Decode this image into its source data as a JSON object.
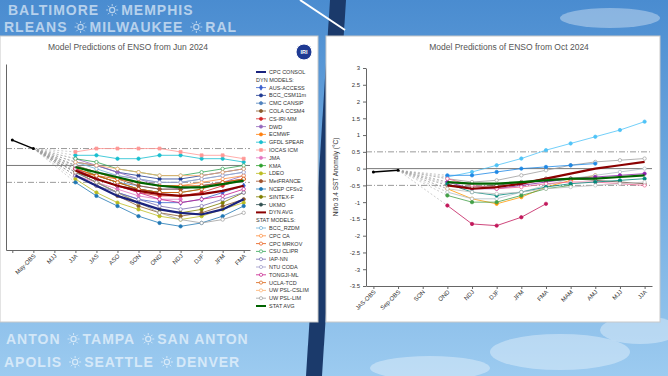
{
  "background_text": [
    [
      "BALTIMORE",
      "MEMPHIS"
    ],
    [
      "RLEANS",
      "MILWAUKEE",
      "RAL"
    ],
    [
      "ANTON",
      "TAMPA",
      "SAN ANTON"
    ],
    [
      "APOLIS",
      "SEATTLE",
      "DENVER"
    ]
  ],
  "chart_data": [
    {
      "type": "line",
      "title": "Model Predictions of ENSO from Jun 2024",
      "categories": [
        null,
        "May-OBS",
        "MJJ",
        "JJA",
        "JAS",
        "ASO",
        "SON",
        "OND",
        "NDJ",
        "DJF",
        "JFM",
        "FMA"
      ],
      "observed": {
        "color": "#000000",
        "values": [
          0.75,
          0.5,
          null,
          null,
          null,
          null,
          null,
          null,
          null,
          null,
          null,
          null
        ]
      },
      "series": [
        {
          "name": "CPC CONSOL",
          "color": "#1a237e",
          "line_style": "bold",
          "marker": "none",
          "values": [
            null,
            null,
            null,
            -0.3,
            -0.6,
            -0.9,
            -1.1,
            -1.3,
            -1.4,
            -1.45,
            -1.3,
            -1.0
          ]
        },
        {
          "name": "AUS-ACCESS",
          "color": "#3a5fcd",
          "marker": "diamond",
          "values": [
            null,
            null,
            null,
            -0.2,
            -0.5,
            -0.8,
            -1.0,
            -1.1,
            -1.1,
            -1.0,
            -0.8,
            -0.6
          ]
        },
        {
          "name": "BCC_CSM11m",
          "color": "#1f3a93",
          "marker": "circle",
          "values": [
            null,
            null,
            null,
            0.1,
            0.0,
            -0.2,
            -0.3,
            -0.4,
            -0.4,
            -0.3,
            -0.2,
            -0.1
          ]
        },
        {
          "name": "CMC CANSIP",
          "color": "#4f81bd",
          "marker": "circle",
          "values": [
            null,
            null,
            null,
            -0.1,
            -0.3,
            -0.5,
            -0.6,
            -0.7,
            -0.7,
            -0.6,
            -0.5,
            -0.4
          ]
        },
        {
          "name": "COLA CCSM4",
          "color": "#8b5a2b",
          "marker": "circle",
          "values": [
            null,
            null,
            null,
            -0.3,
            -0.6,
            -0.9,
            -1.2,
            -1.4,
            -1.5,
            -1.4,
            -1.2,
            -1.0
          ]
        },
        {
          "name": "CS-IRI-MM",
          "color": "#d62728",
          "marker": "circle",
          "values": [
            null,
            null,
            null,
            -0.2,
            -0.4,
            -0.6,
            -0.8,
            -0.9,
            -0.9,
            -0.8,
            -0.6,
            -0.4
          ]
        },
        {
          "name": "DWD",
          "color": "#9467bd",
          "marker": "circle",
          "values": [
            null,
            null,
            null,
            0.2,
            0.0,
            -0.2,
            -0.4,
            -0.6,
            -0.7,
            -0.6,
            -0.5,
            -0.3
          ]
        },
        {
          "name": "ECMWF",
          "color": "#ff7f0e",
          "marker": "circle",
          "values": [
            null,
            null,
            null,
            -0.1,
            -0.3,
            -0.5,
            -0.7,
            -0.8,
            null,
            null,
            null,
            null
          ]
        },
        {
          "name": "GFDL SPEAR",
          "color": "#17becf",
          "marker": "circle",
          "values": [
            null,
            null,
            null,
            0.3,
            0.3,
            0.2,
            0.2,
            0.3,
            0.3,
            0.2,
            0.2,
            0.1
          ]
        },
        {
          "name": "IOCAS ICM",
          "color": "#ff9896",
          "marker": "square",
          "values": [
            null,
            null,
            null,
            0.4,
            0.5,
            0.5,
            0.5,
            0.5,
            0.4,
            0.3,
            0.3,
            0.2
          ]
        },
        {
          "name": "JMA",
          "color": "#e377c2",
          "marker": "circle",
          "values": [
            null,
            null,
            null,
            -0.3,
            -0.5,
            -0.7,
            -0.9,
            -1.0,
            -1.0,
            null,
            null,
            null
          ]
        },
        {
          "name": "KMA",
          "color": "#2ca02c",
          "marker": "circle",
          "values": [
            null,
            null,
            null,
            0.0,
            -0.3,
            -0.5,
            -0.7,
            -0.8,
            -0.8,
            -0.7,
            null,
            null
          ]
        },
        {
          "name": "LDEO",
          "color": "#bcbd22",
          "marker": "circle",
          "values": [
            null,
            null,
            null,
            -0.4,
            -0.8,
            -1.1,
            -1.3,
            -1.5,
            -1.6,
            -1.5,
            -1.3,
            -1.1
          ]
        },
        {
          "name": "MetFRANCE",
          "color": "#a0522d",
          "marker": "circle",
          "values": [
            null,
            null,
            null,
            0.0,
            -0.2,
            -0.4,
            -0.6,
            -0.7,
            -0.7,
            null,
            null,
            null
          ]
        },
        {
          "name": "NCEP CFSv2",
          "color": "#1f77b4",
          "marker": "circle",
          "values": [
            null,
            null,
            null,
            -0.5,
            -0.9,
            -1.2,
            -1.5,
            -1.7,
            -1.8,
            -1.7,
            -1.5,
            -1.2
          ]
        },
        {
          "name": "SINTEX-F",
          "color": "#7f7f00",
          "marker": "circle",
          "values": [
            null,
            null,
            null,
            -0.2,
            -0.5,
            -0.8,
            -1.1,
            -1.3,
            -1.4,
            -1.3,
            -1.1,
            -0.8
          ]
        },
        {
          "name": "UKMO",
          "color": "#2f4f4f",
          "marker": "circle",
          "values": [
            null,
            null,
            null,
            -0.2,
            -0.4,
            -0.6,
            -0.7,
            -0.8,
            null,
            null,
            null,
            null
          ]
        },
        {
          "name": "DYN AVG",
          "color": "#8b0000",
          "line_style": "bold",
          "marker": "none",
          "values": [
            null,
            null,
            null,
            -0.15,
            -0.4,
            -0.6,
            -0.75,
            -0.85,
            -0.9,
            -0.85,
            -0.75,
            -0.6
          ]
        },
        {
          "name": "BCC_RZDM",
          "color": "#6baed6",
          "marker": "circle-open",
          "values": [
            null,
            null,
            null,
            0.1,
            -0.1,
            -0.3,
            -0.4,
            -0.5,
            -0.5,
            -0.4,
            -0.3,
            -0.2
          ]
        },
        {
          "name": "CPC CA",
          "color": "#fd8d3c",
          "marker": "circle-open",
          "values": [
            null,
            null,
            null,
            0.0,
            -0.2,
            -0.4,
            -0.5,
            -0.6,
            -0.6,
            -0.5,
            -0.4,
            -0.3
          ]
        },
        {
          "name": "CPC MRKOV",
          "color": "#e6550d",
          "marker": "circle-open",
          "values": [
            null,
            null,
            null,
            -0.1,
            -0.3,
            -0.5,
            -0.7,
            -0.8,
            -0.8,
            -0.7,
            -0.5,
            -0.4
          ]
        },
        {
          "name": "CSU CLIPR",
          "color": "#31a354",
          "marker": "circle-open",
          "values": [
            null,
            null,
            null,
            0.2,
            0.1,
            -0.1,
            -0.2,
            -0.3,
            -0.3,
            -0.2,
            -0.1,
            0.0
          ]
        },
        {
          "name": "IAP-NN",
          "color": "#756bb1",
          "marker": "circle-open",
          "values": [
            null,
            null,
            null,
            -0.3,
            -0.6,
            -0.8,
            -1.0,
            -1.2,
            -1.3,
            -1.2,
            -1.0,
            -0.8
          ]
        },
        {
          "name": "NTU CODA",
          "color": "#9e9ac8",
          "marker": "circle-open",
          "values": [
            null,
            null,
            null,
            0.0,
            -0.2,
            -0.3,
            -0.4,
            -0.5,
            -0.5,
            -0.4,
            -0.3,
            -0.2
          ]
        },
        {
          "name": "TONGJI-ML",
          "color": "#c51b8a",
          "marker": "circle-open",
          "values": [
            null,
            null,
            null,
            -0.1,
            -0.4,
            -0.6,
            -0.8,
            -1.0,
            -1.1,
            -1.0,
            -0.9,
            -0.7
          ]
        },
        {
          "name": "UCLA-TCD",
          "color": "#d95f0e",
          "marker": "circle-open",
          "values": [
            null,
            null,
            null,
            -0.2,
            -0.3,
            -0.4,
            -0.5,
            -0.6,
            -0.6,
            -0.6,
            -0.5,
            -0.4
          ]
        },
        {
          "name": "UW PSL-CSLIM",
          "color": "#fdae6b",
          "marker": "circle-open",
          "values": [
            null,
            null,
            null,
            0.1,
            0.0,
            -0.1,
            -0.2,
            -0.3,
            -0.3,
            -0.3,
            -0.2,
            -0.1
          ]
        },
        {
          "name": "UW PSL-LIM",
          "color": "#9e9e9e",
          "marker": "circle-open",
          "values": [
            null,
            null,
            null,
            -0.2,
            -0.5,
            -0.8,
            -1.1,
            -1.4,
            -1.6,
            -1.7,
            -1.6,
            -1.4
          ]
        },
        {
          "name": "STAT AVG",
          "color": "#006400",
          "line_style": "bold",
          "marker": "none",
          "values": [
            null,
            null,
            null,
            -0.05,
            -0.2,
            -0.35,
            -0.5,
            -0.6,
            -0.65,
            -0.65,
            -0.55,
            -0.45
          ]
        }
      ],
      "ylim": [
        -2.5,
        3
      ],
      "tick_labels": "x",
      "grid": false,
      "legend": "right",
      "legend_headings": [
        {
          "label": "DYN MODELS:",
          "before": "AUS-ACCESS"
        },
        {
          "label": "STAT MODELS:",
          "before": "BCC_RZDM"
        }
      ],
      "annotations": [
        {
          "y": 0.5,
          "line_style": "dashdot"
        },
        {
          "y": 0,
          "line_style": "solid"
        },
        {
          "y": -0.5,
          "line_style": "dashdot"
        },
        {
          "text": "IRI"
        }
      ]
    },
    {
      "type": "line",
      "title": "Model Predictions of ENSO from Oct 2024",
      "y_label": "Niño 3.4 SST Anomaly (°C)",
      "categories": [
        "JAS-OBS",
        "Sep-OBS",
        "SON",
        "OND",
        "NDJ",
        "DJF",
        "JFM",
        "FMA",
        "MAM",
        "AMJ",
        "MJJ",
        "JJA"
      ],
      "observed": {
        "color": "#000000",
        "values": [
          -0.1,
          -0.05,
          null,
          null,
          null,
          null,
          null,
          null,
          null,
          null,
          null,
          null
        ]
      },
      "series": [
        {
          "color": "#4fc3f7",
          "marker": "circle",
          "values": [
            null,
            null,
            null,
            -0.25,
            -0.1,
            0.1,
            0.3,
            0.55,
            0.75,
            0.95,
            1.15,
            1.4
          ]
        },
        {
          "color": "#c2185b",
          "marker": "circle",
          "values": [
            null,
            null,
            null,
            -1.1,
            -1.65,
            -1.7,
            -1.45,
            -1.05,
            null,
            null,
            null,
            null
          ]
        },
        {
          "color": "#ff9800",
          "marker": "circle",
          "values": [
            null,
            null,
            null,
            -0.6,
            -0.9,
            -1.05,
            -0.85,
            -0.55,
            -0.35,
            -0.2,
            null,
            null
          ]
        },
        {
          "color": "#9e9e9e",
          "marker": "circle-open",
          "values": [
            null,
            null,
            null,
            -0.3,
            -0.4,
            -0.35,
            -0.2,
            -0.05,
            0.1,
            0.2,
            0.25,
            0.3
          ]
        },
        {
          "color": "#b0bec5",
          "marker": "circle-open",
          "values": [
            null,
            null,
            null,
            -0.7,
            -0.9,
            -0.9,
            -0.7,
            -0.5,
            -0.3,
            -0.2,
            -0.1,
            0.0
          ]
        },
        {
          "color": "#1e88e5",
          "marker": "circle",
          "values": [
            null,
            null,
            null,
            -0.2,
            -0.2,
            -0.1,
            0.0,
            0.05,
            0.1,
            0.15,
            null,
            null
          ]
        },
        {
          "color": "#43a047",
          "marker": "circle",
          "values": [
            null,
            null,
            null,
            -0.8,
            -1.0,
            -1.0,
            -0.8,
            -0.6,
            -0.5,
            null,
            null,
            null
          ]
        },
        {
          "color": "#8e24aa",
          "marker": "circle",
          "values": [
            null,
            null,
            null,
            -0.4,
            -0.6,
            -0.6,
            -0.5,
            -0.4,
            -0.3,
            -0.25,
            -0.2,
            -0.15
          ]
        },
        {
          "color": "#6d4c41",
          "marker": "circle-open",
          "values": [
            null,
            null,
            null,
            -0.5,
            -0.55,
            -0.5,
            -0.4,
            -0.3,
            -0.3,
            -0.35,
            -0.4,
            -0.45
          ]
        },
        {
          "color": "#f06292",
          "marker": "circle-open",
          "values": [
            null,
            null,
            null,
            -0.3,
            -0.5,
            -0.6,
            -0.55,
            -0.45,
            -0.4,
            -0.4,
            -0.45,
            -0.5
          ]
        },
        {
          "color": "#00897b",
          "marker": "circle",
          "values": [
            null,
            null,
            null,
            -0.45,
            -0.7,
            -0.8,
            -0.7,
            -0.55,
            -0.45,
            -0.4,
            -0.35,
            -0.3
          ]
        },
        {
          "color": "#bdbdbd",
          "marker": "circle-open",
          "values": [
            null,
            null,
            null,
            -0.6,
            -0.7,
            -0.75,
            -0.7,
            -0.6,
            -0.55,
            -0.5,
            -0.45,
            -0.4
          ]
        },
        {
          "color": "#8b0000",
          "line_style": "bold",
          "marker": "none",
          "values": [
            null,
            null,
            null,
            -0.5,
            -0.6,
            -0.55,
            -0.45,
            -0.3,
            -0.15,
            0.0,
            0.1,
            0.2
          ]
        },
        {
          "color": "#006400",
          "line_style": "bold",
          "marker": "none",
          "values": [
            null,
            null,
            null,
            -0.4,
            -0.45,
            -0.45,
            -0.4,
            -0.35,
            -0.3,
            -0.3,
            -0.25,
            -0.2
          ]
        }
      ],
      "ylim": [
        -3.5,
        3
      ],
      "yticks": [
        3,
        2.5,
        2,
        1.5,
        1,
        0.5,
        0,
        -0.5,
        -1,
        -1.5,
        -2,
        -2.5,
        -3,
        -3.5
      ],
      "grid": false,
      "annotations": [
        {
          "y": 0.5,
          "line_style": "dashdot"
        },
        {
          "y": 0,
          "line_style": "solid"
        },
        {
          "y": -0.5,
          "line_style": "dashdot"
        }
      ]
    }
  ]
}
